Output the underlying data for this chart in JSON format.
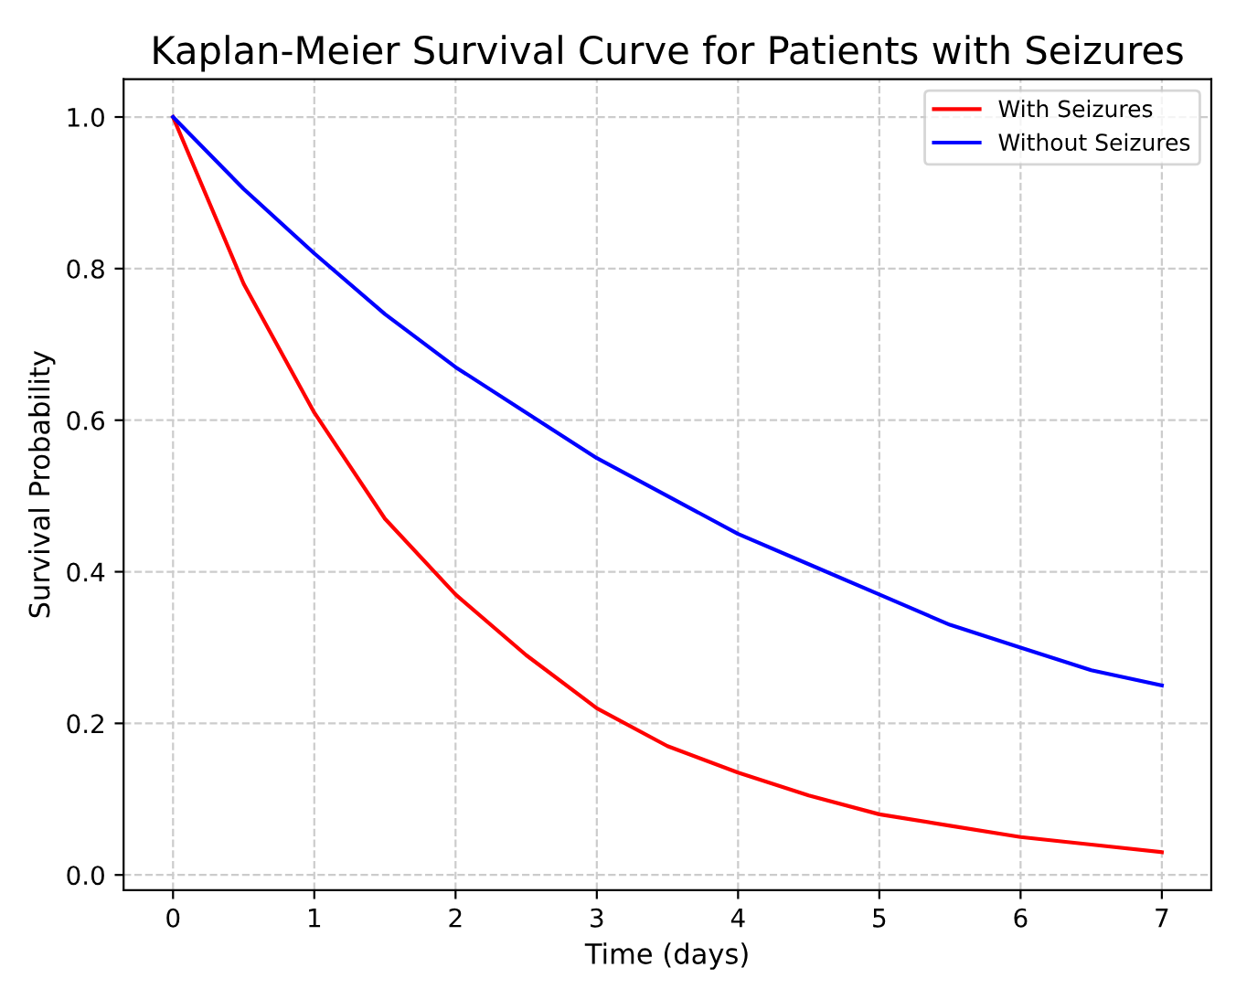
{
  "chart_data": {
    "type": "line",
    "title": "Kaplan-Meier Survival Curve for Patients with Seizures",
    "xlabel": "Time (days)",
    "ylabel": "Survival Probability",
    "x": [
      0,
      0.5,
      1,
      1.5,
      2,
      2.5,
      3,
      3.5,
      4,
      4.5,
      5,
      5.5,
      6,
      6.5,
      7
    ],
    "series": [
      {
        "name": "With Seizures",
        "color": "#ff0000",
        "values": [
          1.0,
          0.78,
          0.61,
          0.47,
          0.37,
          0.29,
          0.22,
          0.17,
          0.135,
          0.105,
          0.08,
          0.065,
          0.05,
          0.04,
          0.03
        ]
      },
      {
        "name": "Without Seizures",
        "color": "#0000ff",
        "values": [
          1.0,
          0.905,
          0.82,
          0.74,
          0.67,
          0.61,
          0.55,
          0.5,
          0.45,
          0.41,
          0.37,
          0.33,
          0.3,
          0.27,
          0.25
        ]
      }
    ],
    "xlim": [
      -0.35,
      7.35
    ],
    "ylim": [
      -0.02,
      1.05
    ],
    "xticks": [
      0,
      1,
      2,
      3,
      4,
      5,
      6,
      7
    ],
    "yticks": [
      {
        "value": 0,
        "label": "0.0"
      },
      {
        "value": 0.2,
        "label": "0.2"
      },
      {
        "value": 0.4,
        "label": "0.4"
      },
      {
        "value": 0.6,
        "label": "0.6"
      },
      {
        "value": 0.8,
        "label": "0.8"
      },
      {
        "value": 1,
        "label": "1.0"
      }
    ],
    "grid": true,
    "legend": "top right",
    "line_style": "solid",
    "marker": "none"
  }
}
